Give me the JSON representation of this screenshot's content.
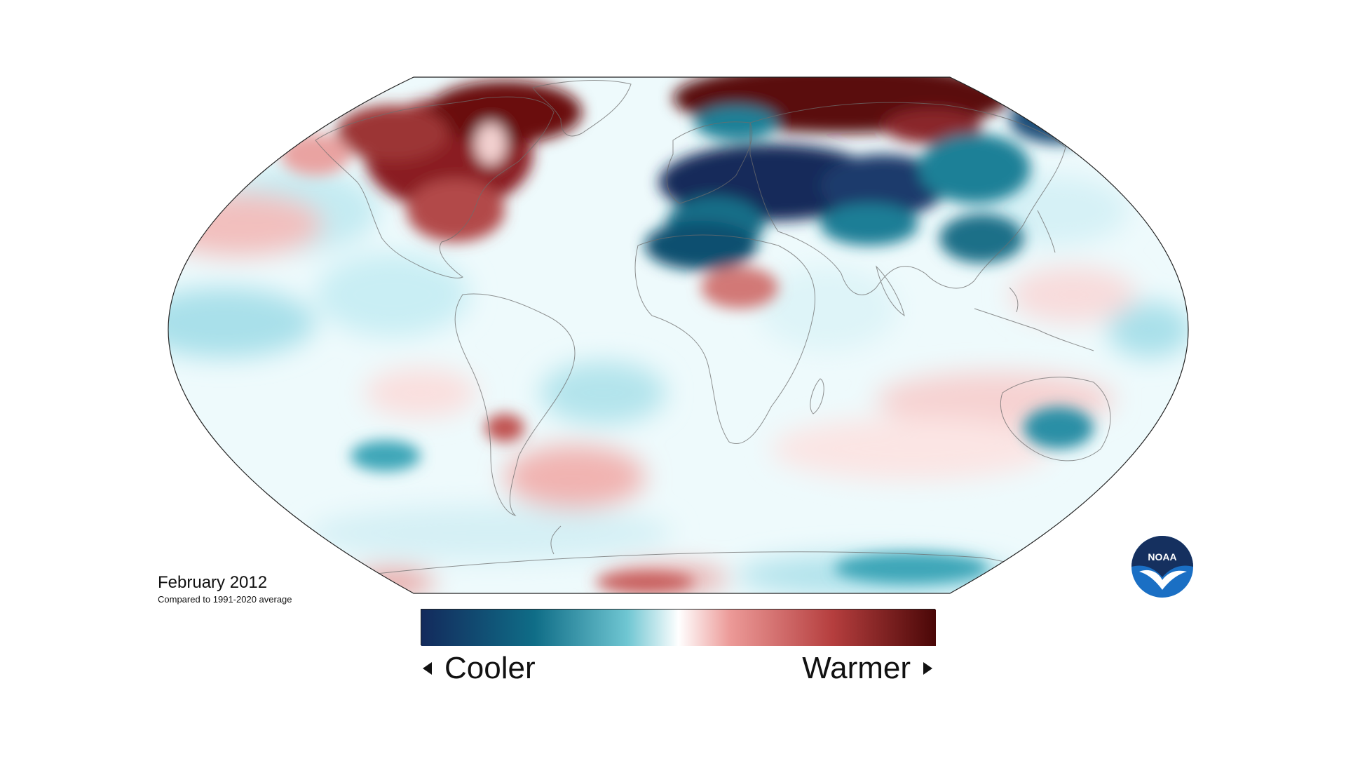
{
  "caption": {
    "title": "February 2012",
    "subtitle": "Compared to 1991-2020 average"
  },
  "legend": {
    "left_label": "Cooler",
    "right_label": "Warmer",
    "colors": [
      "#132a5c",
      "#0f6d87",
      "#6fc6d2",
      "#ffffff",
      "#ec9a98",
      "#b53e3e",
      "#4a0707"
    ]
  },
  "logo": {
    "text": "NOAA"
  },
  "palette": {
    "ocean_white": "#ffffff",
    "pale_cyan": "#cfeff4",
    "light_cyan": "#a9e0ea",
    "teal": "#1d8097",
    "deep_navy": "#12295a",
    "light_pink": "#f6d2d1",
    "salmon": "#e29290",
    "dark_red": "#6b0e10"
  }
}
